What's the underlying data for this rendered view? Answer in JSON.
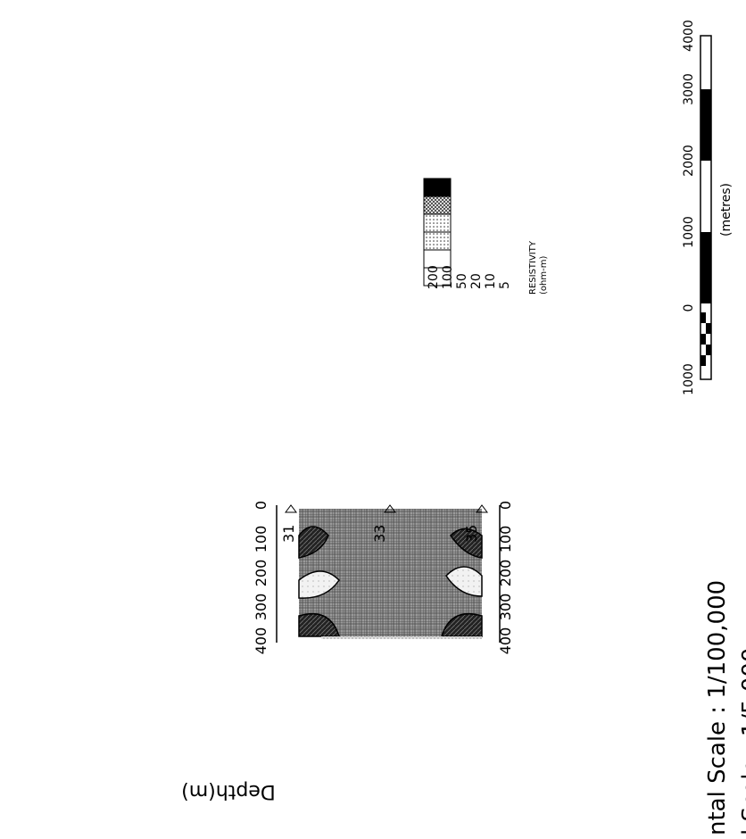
{
  "section": {
    "stations": [
      "31",
      "33",
      "35"
    ],
    "depth_label": "Depth(m)",
    "depth_ticks": [
      "0",
      "100",
      "200",
      "300",
      "400"
    ]
  },
  "legend": {
    "values": [
      "200",
      "100",
      "50",
      "20",
      "10",
      "5"
    ],
    "title_line1": "RESISTIVITY",
    "title_line2": "(ohm-m)"
  },
  "scale_bar": {
    "ticks": [
      "1000",
      "0",
      "1000",
      "2000",
      "3000",
      "4000"
    ],
    "unit": "(metres)"
  },
  "scales": {
    "horizontal": "ntal Scale : 1/100,000",
    "vertical": "l Scale   : 1/5,000"
  },
  "colors": {
    "ink": "#000000",
    "stipple": "#c7c7c7",
    "dark_zone": "#3a3a3a"
  }
}
